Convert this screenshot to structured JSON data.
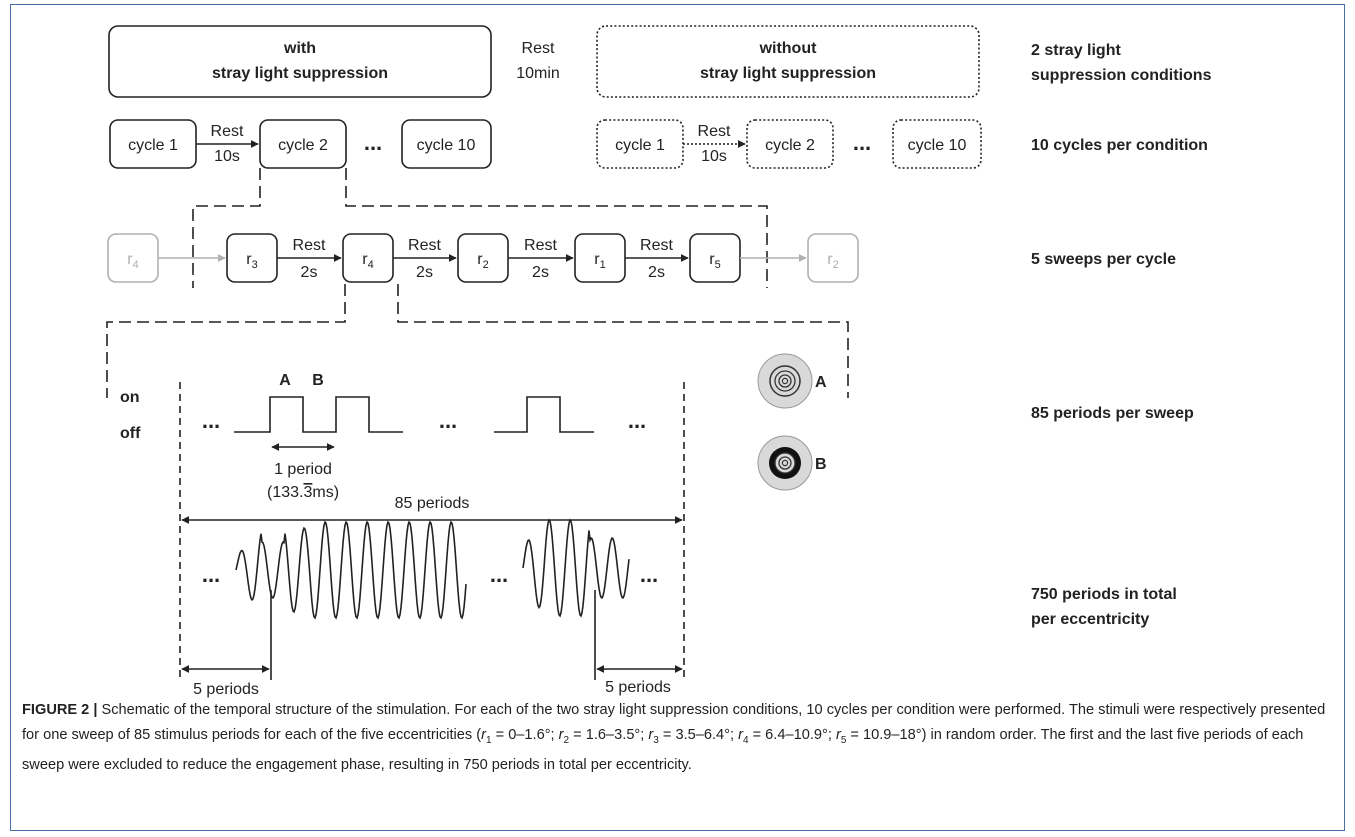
{
  "conditions": {
    "with_line1": "with",
    "with_line2": "stray light suppression",
    "without_line1": "without",
    "without_line2": "stray light suppression",
    "rest_label": "Rest",
    "rest_duration": "10min"
  },
  "cycles": {
    "cycle1": "cycle 1",
    "cycle2": "cycle 2",
    "cycle10": "cycle 10",
    "rest_label": "Rest",
    "rest_duration": "10s",
    "ellipsis": "..."
  },
  "sweeps": {
    "items": [
      {
        "base": "r",
        "sub": "4",
        "faded": true
      },
      {
        "base": "r",
        "sub": "3",
        "faded": false
      },
      {
        "base": "r",
        "sub": "4",
        "faded": false
      },
      {
        "base": "r",
        "sub": "2",
        "faded": false
      },
      {
        "base": "r",
        "sub": "1",
        "faded": false
      },
      {
        "base": "r",
        "sub": "5",
        "faded": false
      },
      {
        "base": "r",
        "sub": "2",
        "faded": true
      }
    ],
    "rest_label": "Rest",
    "rest_duration": "2s"
  },
  "periods": {
    "on_label": "on",
    "off_label": "off",
    "marker_a": "A",
    "marker_b": "B",
    "one_period": "1 period",
    "period_duration_prefix": "(133.",
    "period_duration_repeating": "3",
    "period_duration_suffix": "ms)",
    "span_label": "85 periods",
    "exclude_left": "5 periods",
    "exclude_right": "5 periods",
    "stimulus_a": "A",
    "stimulus_b": "B",
    "ellipsis": "..."
  },
  "right_labels": {
    "conditions_line1": "2 stray light",
    "conditions_line2": "suppression conditions",
    "cycles": "10 cycles per condition",
    "sweeps": "5 sweeps per cycle",
    "periods": "85 periods per sweep",
    "total_line1": "750 periods in total",
    "total_line2": "per eccentricity"
  },
  "caption": {
    "label": "FIGURE 2 |",
    "part1": " Schematic of the temporal structure of the stimulation. For each of the two stray light suppression conditions, 10 cycles per condition were performed. The stimuli were respectively presented for one sweep of 85 stimulus periods for each of the five eccentricities (",
    "r1": " = 0–1.6°; ",
    "r2": " = 1.6–3.5°; ",
    "r3": " = 3.5–6.4°; ",
    "r4": " = 6.4–10.9°; ",
    "r5": " = 10.9–18°) in random order. The first and the last five periods of each sweep were excluded to reduce the engagement phase, resulting in 750 periods in total per eccentricity."
  },
  "colors": {
    "line": "#222222",
    "faded": "#b0b0b0",
    "frame": "#4a6fa5",
    "disk_outer": "#d9d9d9"
  }
}
